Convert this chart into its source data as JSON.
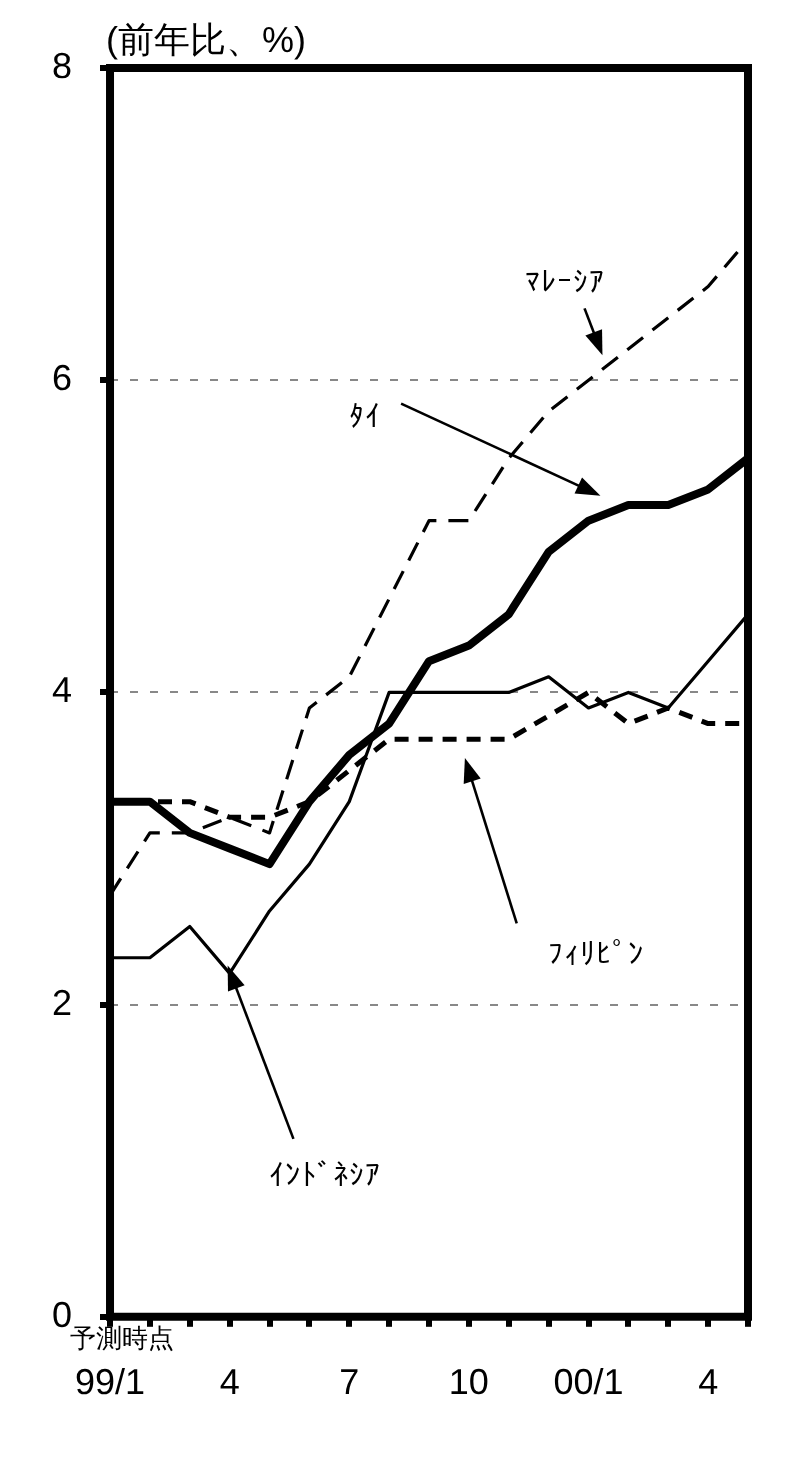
{
  "chart_data": {
    "type": "line",
    "ylabel": "(前年比、%)",
    "xlabel": "予測時点",
    "categories": [
      "99/1",
      null,
      null,
      "4",
      null,
      null,
      "7",
      null,
      null,
      "10",
      null,
      null,
      "00/1",
      null,
      null,
      "4",
      null
    ],
    "ylim": [
      0,
      8
    ],
    "yticks": [
      0,
      2,
      4,
      6,
      8
    ],
    "grid": "y",
    "legend": false,
    "marker": "none",
    "series": [
      {
        "name": "ﾏﾚｰｼｱ",
        "color": "#000000",
        "line_style": "dashed",
        "values": [
          2.7,
          3.1,
          3.1,
          3.2,
          3.1,
          3.9,
          4.1,
          4.6,
          5.1,
          5.1,
          5.5,
          5.8,
          6.0,
          6.2,
          6.4,
          6.6,
          6.9
        ]
      },
      {
        "name": "ﾀｲ",
        "color": "#000000",
        "line_style": "solid",
        "values": [
          3.3,
          3.3,
          3.1,
          3.0,
          2.9,
          3.3,
          3.6,
          3.8,
          4.2,
          4.3,
          4.5,
          4.9,
          5.1,
          5.2,
          5.2,
          5.3,
          5.5
        ]
      },
      {
        "name": "ﾌｨﾘﾋﾟﾝ",
        "color": "#000000",
        "line_style": "dashed",
        "values": [
          3.3,
          3.3,
          3.3,
          3.2,
          3.2,
          3.3,
          3.5,
          3.7,
          3.7,
          3.7,
          3.7,
          3.85,
          4.0,
          3.8,
          3.9,
          3.8,
          3.8
        ]
      },
      {
        "name": "ｲﾝﾄﾞﾈｼｱ",
        "color": "#000000",
        "line_style": "solid",
        "values": [
          2.3,
          2.3,
          2.5,
          2.2,
          2.6,
          2.9,
          3.3,
          4.0,
          4.0,
          4.0,
          4.0,
          4.1,
          3.9,
          4.0,
          3.9,
          4.2,
          4.5
        ]
      }
    ]
  }
}
